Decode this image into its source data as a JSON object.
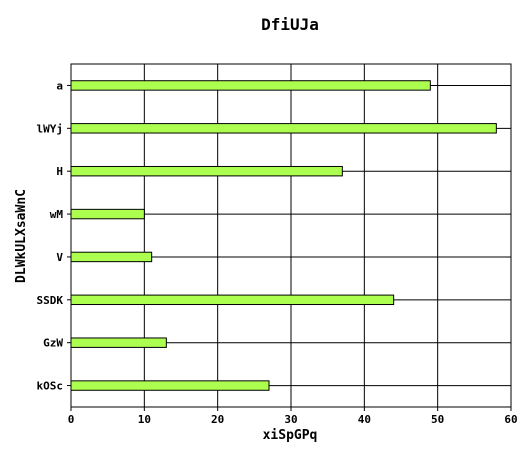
{
  "chart_data": {
    "type": "bar",
    "orientation": "horizontal",
    "title": "DfiUJa",
    "xlabel": "xiSpGPq",
    "ylabel": "DLWkULXsaWnC",
    "categories": [
      "a",
      "lWYj",
      "H",
      "wM",
      "V",
      "SSDK",
      "GzW",
      "kOSc"
    ],
    "values": [
      49,
      58,
      37,
      10,
      11,
      44,
      13,
      27
    ],
    "xlim": [
      0,
      60
    ],
    "xticks": [
      0,
      10,
      20,
      30,
      40,
      50,
      60
    ],
    "grid": true,
    "bar_color": "#adff4f",
    "bar_edge_color": "#000000"
  }
}
